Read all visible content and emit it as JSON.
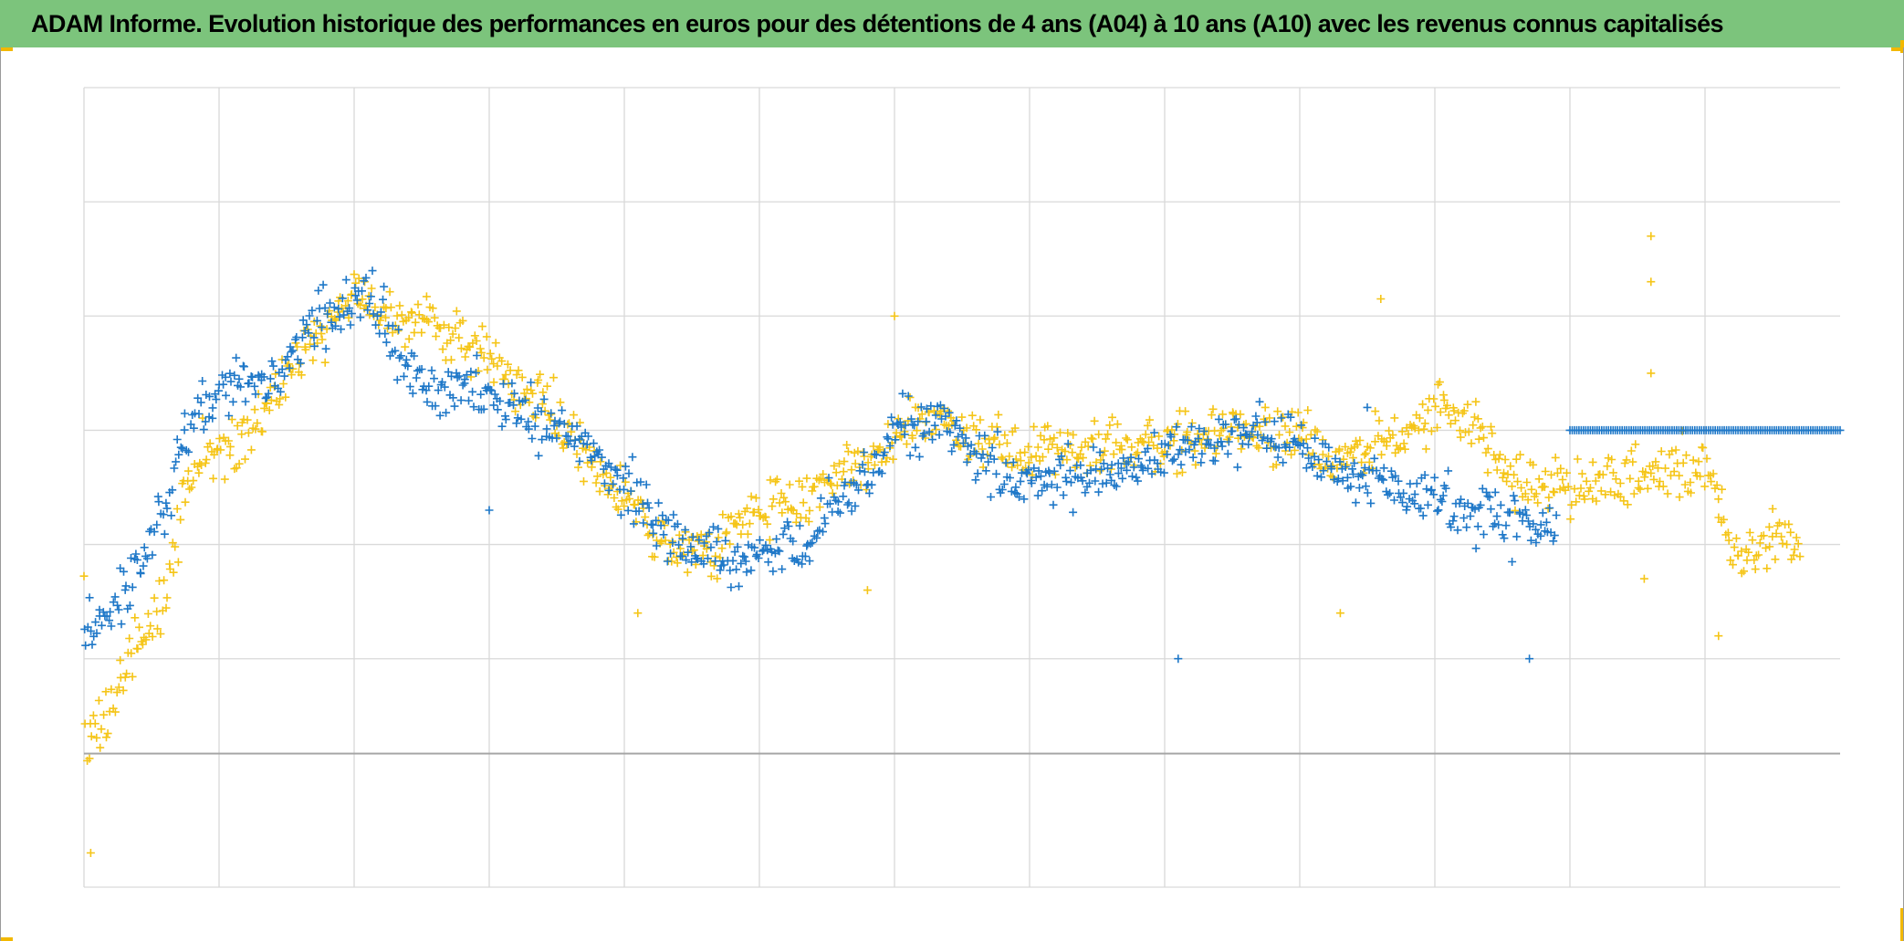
{
  "title": "ADAM Informe. Evolution historique des performances en euros pour des détentions de 4 ans (A04) à 10 ans (A10) avec les revenus connus capitalisés",
  "colors": {
    "header_bg": "#7cc47c",
    "corner_accent": "#f2b800",
    "series_a04": "#1f78c8",
    "series_a10": "#f5c518",
    "grid": "#d9d9d9",
    "zero_line": "#a6a6a6"
  },
  "chart_data": {
    "type": "scatter",
    "marker": "+",
    "title": "",
    "xlabel": "",
    "ylabel": "",
    "xlim": [
      0,
      13
    ],
    "ylim": [
      -1,
      6
    ],
    "x_gridlines": [
      1,
      2,
      3,
      4,
      5,
      6,
      7,
      8,
      9,
      10,
      11,
      12
    ],
    "y_gridlines": [
      1,
      2,
      3,
      4,
      5
    ],
    "zero_line": 0.17,
    "tick_labels_visible": false,
    "legend_visible": false,
    "series": [
      {
        "name": "A04",
        "color": "#1f78c8",
        "trend": [
          [
            0.0,
            1.2
          ],
          [
            0.2,
            1.4
          ],
          [
            0.4,
            1.75
          ],
          [
            0.6,
            2.3
          ],
          [
            0.8,
            3.1
          ],
          [
            1.0,
            3.45
          ],
          [
            1.3,
            3.35
          ],
          [
            1.5,
            3.6
          ],
          [
            1.7,
            3.95
          ],
          [
            1.95,
            4.1
          ],
          [
            2.1,
            4.15
          ],
          [
            2.25,
            3.85
          ],
          [
            2.45,
            3.4
          ],
          [
            2.6,
            3.3
          ],
          [
            2.9,
            3.35
          ],
          [
            3.2,
            3.2
          ],
          [
            3.6,
            2.95
          ],
          [
            4.0,
            2.55
          ],
          [
            4.3,
            2.1
          ],
          [
            4.6,
            1.9
          ],
          [
            5.0,
            1.85
          ],
          [
            5.3,
            2.0
          ],
          [
            5.6,
            2.4
          ],
          [
            5.9,
            2.75
          ],
          [
            6.0,
            3.05
          ],
          [
            6.3,
            3.05
          ],
          [
            6.6,
            2.8
          ],
          [
            7.0,
            2.5
          ],
          [
            7.4,
            2.6
          ],
          [
            7.8,
            2.7
          ],
          [
            8.2,
            2.9
          ],
          [
            8.6,
            3.0
          ],
          [
            8.9,
            3.0
          ],
          [
            9.3,
            2.6
          ],
          [
            9.6,
            2.55
          ],
          [
            9.9,
            2.4
          ],
          [
            10.3,
            2.25
          ],
          [
            10.6,
            2.2
          ],
          [
            10.9,
            2.15
          ]
        ],
        "spread": 0.22,
        "count": 900,
        "flat_segment": {
          "x_start": 11.0,
          "x_end": 13.0,
          "y": 3.0,
          "count": 120
        },
        "outliers": [
          [
            8.1,
            1.0
          ],
          [
            10.7,
            1.0
          ],
          [
            9.5,
            3.2
          ],
          [
            3.0,
            2.3
          ]
        ]
      },
      {
        "name": "A10",
        "color": "#f5c518",
        "trend": [
          [
            0.0,
            0.3
          ],
          [
            0.2,
            0.6
          ],
          [
            0.4,
            1.1
          ],
          [
            0.6,
            1.5
          ],
          [
            0.8,
            2.7
          ],
          [
            1.0,
            2.9
          ],
          [
            1.2,
            2.9
          ],
          [
            1.4,
            3.3
          ],
          [
            1.6,
            3.65
          ],
          [
            1.8,
            3.9
          ],
          [
            2.0,
            4.2
          ],
          [
            2.3,
            4.05
          ],
          [
            2.6,
            3.95
          ],
          [
            2.9,
            3.7
          ],
          [
            3.2,
            3.45
          ],
          [
            3.5,
            3.1
          ],
          [
            3.8,
            2.65
          ],
          [
            4.1,
            2.3
          ],
          [
            4.4,
            1.9
          ],
          [
            4.7,
            1.95
          ],
          [
            5.0,
            2.35
          ],
          [
            5.3,
            2.4
          ],
          [
            5.6,
            2.6
          ],
          [
            5.9,
            2.85
          ],
          [
            6.2,
            3.1
          ],
          [
            6.5,
            3.0
          ],
          [
            6.8,
            2.75
          ],
          [
            7.1,
            2.8
          ],
          [
            7.4,
            2.9
          ],
          [
            7.7,
            2.85
          ],
          [
            8.0,
            2.85
          ],
          [
            8.3,
            2.95
          ],
          [
            8.6,
            3.0
          ],
          [
            8.9,
            3.0
          ],
          [
            9.2,
            2.75
          ],
          [
            9.5,
            2.85
          ],
          [
            9.8,
            2.9
          ],
          [
            10.0,
            3.2
          ],
          [
            10.3,
            3.1
          ],
          [
            10.6,
            2.6
          ],
          [
            10.9,
            2.5
          ],
          [
            11.2,
            2.55
          ],
          [
            11.5,
            2.6
          ],
          [
            11.8,
            2.65
          ],
          [
            12.0,
            2.7
          ],
          [
            12.2,
            1.95
          ],
          [
            12.5,
            2.05
          ],
          [
            12.7,
            2.0
          ]
        ],
        "spread": 0.22,
        "count": 1050,
        "outliers": [
          [
            0.05,
            -0.7
          ],
          [
            4.1,
            1.4
          ],
          [
            5.8,
            1.6
          ],
          [
            9.3,
            1.4
          ],
          [
            12.1,
            1.2
          ],
          [
            11.6,
            4.7
          ],
          [
            11.6,
            4.3
          ],
          [
            11.55,
            1.7
          ],
          [
            6.0,
            4.0
          ],
          [
            9.6,
            4.15
          ],
          [
            11.6,
            3.5
          ]
        ]
      }
    ]
  }
}
